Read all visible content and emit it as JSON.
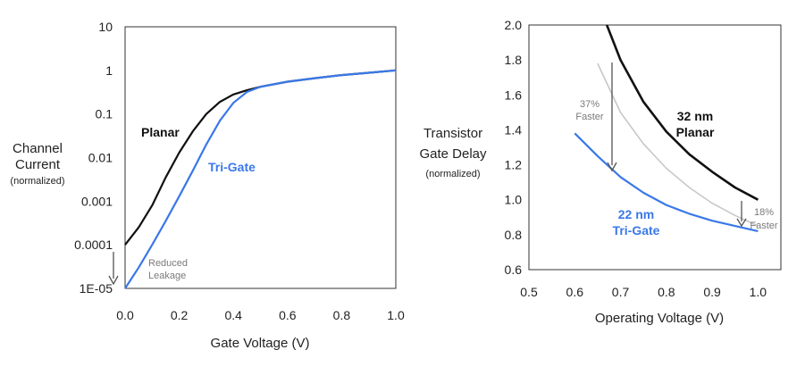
{
  "chart_data": [
    {
      "type": "line",
      "xlabel": "Gate Voltage (V)",
      "ylabel_lines": [
        "Channel",
        "Current",
        "(normalized)"
      ],
      "xlim": [
        0,
        1.0
      ],
      "ylim": [
        1e-05,
        10
      ],
      "yscale": "log",
      "x_ticks": [
        "0.0",
        "0.2",
        "0.4",
        "0.6",
        "0.8",
        "1.0"
      ],
      "y_ticks": [
        "10",
        "1",
        "0.1",
        "0.01",
        "0.001",
        "0.0001",
        "1E-05"
      ],
      "grid": false,
      "colors": {
        "planar": "#111111",
        "trigate": "#3a78e8",
        "arrow": "#555555"
      },
      "series": [
        {
          "name": "Planar",
          "x": [
            0.0,
            0.05,
            0.1,
            0.15,
            0.2,
            0.25,
            0.3,
            0.35,
            0.4,
            0.45,
            0.5,
            0.6,
            0.7,
            0.8,
            0.9,
            1.0
          ],
          "y": [
            0.0001,
            0.00025,
            0.0008,
            0.0035,
            0.013,
            0.04,
            0.1,
            0.19,
            0.28,
            0.35,
            0.42,
            0.55,
            0.66,
            0.78,
            0.88,
            1.0
          ]
        },
        {
          "name": "Tri-Gate",
          "x": [
            0.0,
            0.05,
            0.1,
            0.15,
            0.2,
            0.25,
            0.3,
            0.35,
            0.4,
            0.45,
            0.5,
            0.6,
            0.7,
            0.8,
            0.9,
            1.0
          ],
          "y": [
            1e-05,
            3e-05,
            0.0001,
            0.00035,
            0.0013,
            0.005,
            0.02,
            0.07,
            0.18,
            0.32,
            0.42,
            0.55,
            0.66,
            0.78,
            0.88,
            1.0
          ]
        }
      ],
      "annotations": {
        "planar_label": "Planar",
        "trigate_label": "Tri-Gate",
        "leakage_line1": "Reduced",
        "leakage_line2": "Leakage"
      }
    },
    {
      "type": "line",
      "xlabel": "Operating Voltage (V)",
      "ylabel_lines": [
        "Transistor",
        "Gate Delay",
        "(normalized)"
      ],
      "xlim": [
        0.5,
        1.05
      ],
      "ylim": [
        0.6,
        2.0
      ],
      "x_ticks": [
        "0.5",
        "0.6",
        "0.7",
        "0.8",
        "0.9",
        "1.0"
      ],
      "y_ticks": [
        "2.0",
        "1.8",
        "1.6",
        "1.4",
        "1.2",
        "1.0",
        "0.8",
        "0.6"
      ],
      "grid": false,
      "colors": {
        "planar": "#111111",
        "trigate": "#3a78e8",
        "shifted": "#c8c8c8",
        "arrow": "#555555"
      },
      "series": [
        {
          "name": "32 nm Planar",
          "x": [
            0.67,
            0.7,
            0.75,
            0.8,
            0.85,
            0.9,
            0.95,
            1.0
          ],
          "y": [
            2.0,
            1.8,
            1.56,
            1.39,
            1.26,
            1.16,
            1.07,
            1.0
          ]
        },
        {
          "name": "",
          "x": [
            0.65,
            0.7,
            0.75,
            0.8,
            0.85,
            0.9,
            0.95,
            1.0
          ],
          "y": [
            1.78,
            1.5,
            1.32,
            1.18,
            1.07,
            0.98,
            0.91,
            0.85
          ]
        },
        {
          "name": "22 nm Tri-Gate",
          "x": [
            0.6,
            0.65,
            0.7,
            0.75,
            0.8,
            0.85,
            0.9,
            0.95,
            1.0
          ],
          "y": [
            1.38,
            1.25,
            1.13,
            1.04,
            0.97,
            0.92,
            0.88,
            0.85,
            0.82
          ]
        }
      ],
      "annotations": {
        "planar_label_line1": "32 nm",
        "planar_label_line2": "Planar",
        "trigate_label_line1": "22 nm",
        "trigate_label_line2": "Tri-Gate",
        "faster37_line1": "37%",
        "faster37_line2": "Faster",
        "faster18_line1": "18%",
        "faster18_line2": "Faster"
      }
    }
  ]
}
